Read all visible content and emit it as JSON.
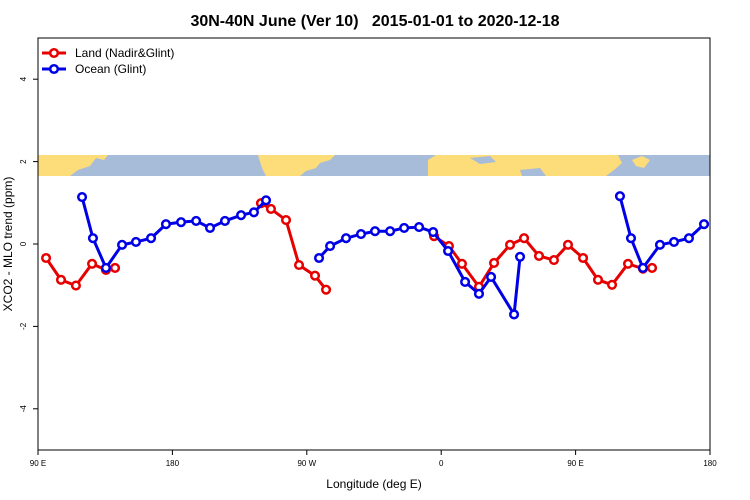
{
  "chart_data": {
    "type": "line",
    "title": "30N-40N June (Ver 10)   2015-01-01 to 2020-12-18",
    "x_label": "Longitude (deg E)",
    "y_label": "XCO2 - MLO trend (ppm)",
    "xlim": [
      90,
      540
    ],
    "ylim": [
      -5,
      5
    ],
    "xticks": [
      {
        "value": 90,
        "label": "90 E"
      },
      180,
      {
        "value": 270,
        "label": "90 W"
      },
      {
        "value": 360,
        "label": "0"
      },
      {
        "value": 450,
        "label": "90 E"
      },
      {
        "value": 540,
        "label": "180"
      }
    ],
    "yticks": [
      -4,
      -2,
      0,
      2,
      4
    ],
    "legend": "top-left",
    "series": [
      {
        "name": "Land (Nadir&Glint)",
        "color": "#e60000",
        "x": [
          95.4,
          105.4,
          115.4,
          126.2,
          135.5,
          141.6,
          null,
          239.3,
          246.0,
          256.1,
          264.8,
          275.5,
          282.9,
          null,
          355.2,
          365.2,
          373.9,
          385.3,
          395.4,
          406.1,
          415.5,
          425.5,
          435.5,
          444.9,
          455.0,
          465.0,
          474.4,
          485.1,
          495.1,
          501.2
        ],
        "values": [
          -0.34,
          -0.87,
          -1.01,
          -0.48,
          -0.63,
          -0.58,
          null,
          0.99,
          0.85,
          0.58,
          -0.51,
          -0.77,
          -1.11,
          null,
          0.19,
          -0.05,
          -0.48,
          -1.04,
          -0.46,
          -0.02,
          0.14,
          -0.29,
          -0.39,
          -0.02,
          -0.34,
          -0.87,
          -0.99,
          -0.48,
          -0.6,
          -0.58
        ]
      },
      {
        "name": "Ocean (Glint)",
        "color": "#0000e6",
        "x": [
          119.5,
          126.8,
          135.5,
          146.3,
          155.6,
          165.7,
          175.7,
          185.8,
          195.9,
          205.2,
          215.2,
          226.0,
          234.6,
          242.7,
          null,
          278.2,
          285.6,
          296.3,
          306.3,
          315.7,
          325.8,
          335.2,
          345.2,
          354.6,
          364.6,
          376.0,
          385.3,
          393.4,
          408.8,
          412.8,
          null,
          479.7,
          487.1,
          495.1,
          506.5,
          515.9,
          525.9,
          536.0
        ],
        "values": [
          1.14,
          0.14,
          -0.58,
          -0.02,
          0.05,
          0.14,
          0.48,
          0.53,
          0.56,
          0.39,
          0.56,
          0.7,
          0.77,
          1.06,
          null,
          -0.34,
          -0.05,
          0.14,
          0.24,
          0.31,
          0.31,
          0.39,
          0.41,
          0.29,
          -0.17,
          -0.92,
          -1.21,
          -0.8,
          -1.71,
          -0.31,
          null,
          1.16,
          0.14,
          -0.58,
          -0.02,
          0.05,
          0.14,
          0.48
        ]
      }
    ]
  }
}
